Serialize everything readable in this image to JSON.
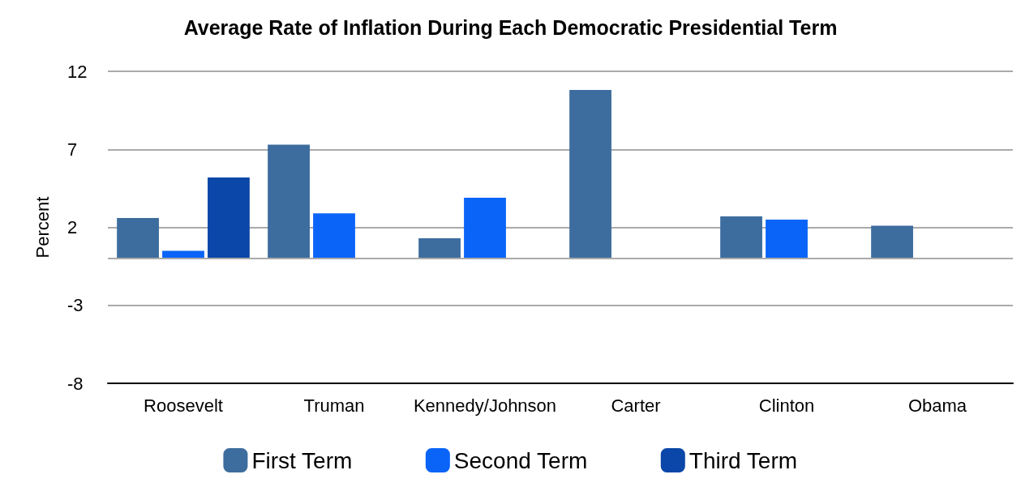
{
  "chart_data": {
    "type": "bar",
    "title": "Average Rate of Inflation During Each Democratic Presidential Term",
    "ylabel": "Percent",
    "categories": [
      "Roosevelt",
      "Truman",
      "Kennedy/Johnson",
      "Carter",
      "Clinton",
      "Obama"
    ],
    "series": [
      {
        "name": "First Term",
        "color": "#3d6d9e",
        "values": [
          2.6,
          7.3,
          1.3,
          10.8,
          2.7,
          2.1
        ]
      },
      {
        "name": "Second Term",
        "color": "#0a64f8",
        "values": [
          0.5,
          2.9,
          3.9,
          null,
          2.5,
          null
        ]
      },
      {
        "name": "Third Term",
        "color": "#0a47a8",
        "values": [
          5.2,
          null,
          null,
          null,
          null,
          null
        ]
      }
    ],
    "ylim": [
      -8,
      12
    ],
    "yticks": [
      -8,
      -3,
      2,
      7,
      12
    ],
    "grid": "y",
    "legend": "bottom",
    "ref_lines": [
      {
        "axis": "y",
        "value": 0,
        "label": null,
        "color": "#aaaaaa"
      }
    ]
  }
}
